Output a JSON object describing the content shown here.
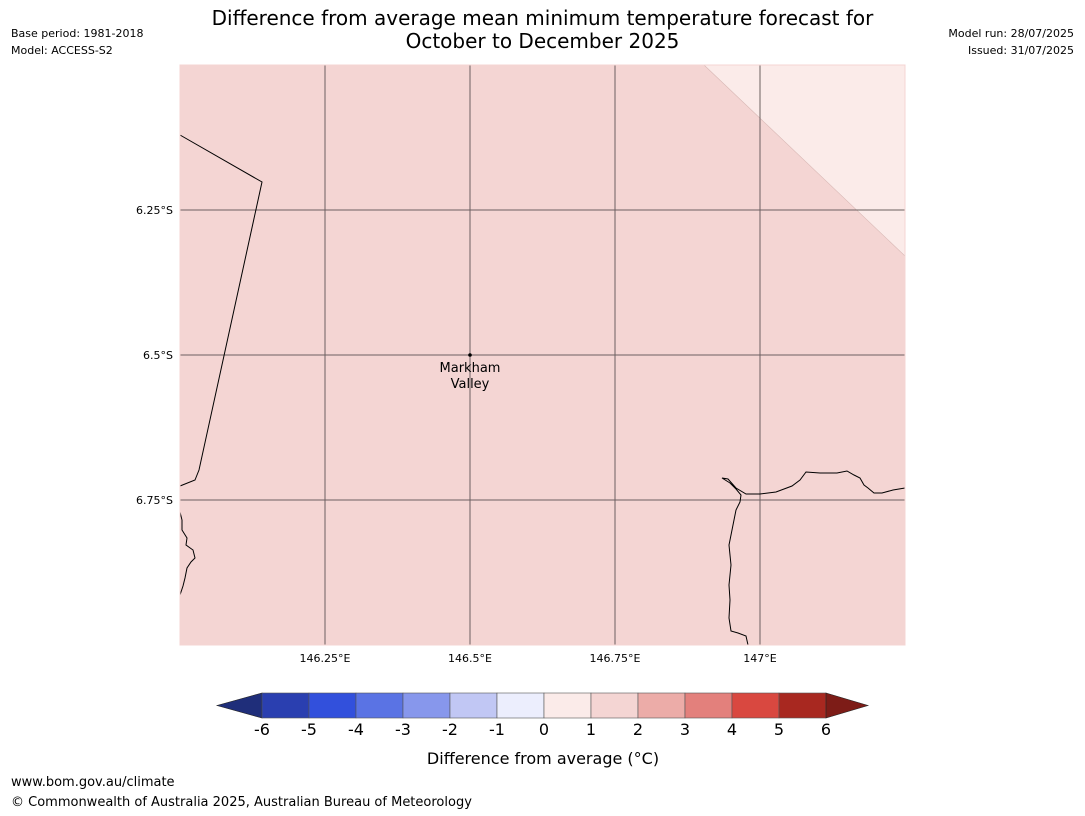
{
  "header": {
    "title_line1": "Difference from average mean minimum temperature forecast for",
    "title_line2": "October to December 2025",
    "base_period": "Base period: 1981-2018",
    "model": "Model: ACCESS-S2",
    "model_run": "Model run: 28/07/2025",
    "issued": "Issued: 31/07/2025"
  },
  "map": {
    "fill_color": "#f4d5d3",
    "upper_right_fill_color": "#fbebe9",
    "gridline_color": "#6b6060",
    "coastline_color": "#000000",
    "lat_labels": [
      "6.25°S",
      "6.5°S",
      "6.75°S"
    ],
    "lon_labels": [
      "146.25°E",
      "146.5°E",
      "146.75°E",
      "147°E"
    ],
    "place": {
      "name_line1": "Markham",
      "name_line2": "Valley"
    }
  },
  "colorbar": {
    "label": "Difference from average (°C)",
    "ticks": [
      "-6",
      "-5",
      "-4",
      "-3",
      "-2",
      "-1",
      "0",
      "1",
      "2",
      "3",
      "4",
      "5",
      "6"
    ],
    "low_extend_color": "#1f2e7a",
    "high_extend_color": "#7d1c17",
    "colors": [
      "#2a3fb0",
      "#3250dc",
      "#5a73e4",
      "#8797ec",
      "#c1c7f4",
      "#eceefd",
      "#fbebe9",
      "#f4d5d3",
      "#ecaca8",
      "#e3807c",
      "#d94840",
      "#a82820"
    ]
  },
  "footer": {
    "url": "www.bom.gov.au/climate",
    "copyright": "© Commonwealth of Australia 2025, Australian Bureau of Meteorology"
  }
}
